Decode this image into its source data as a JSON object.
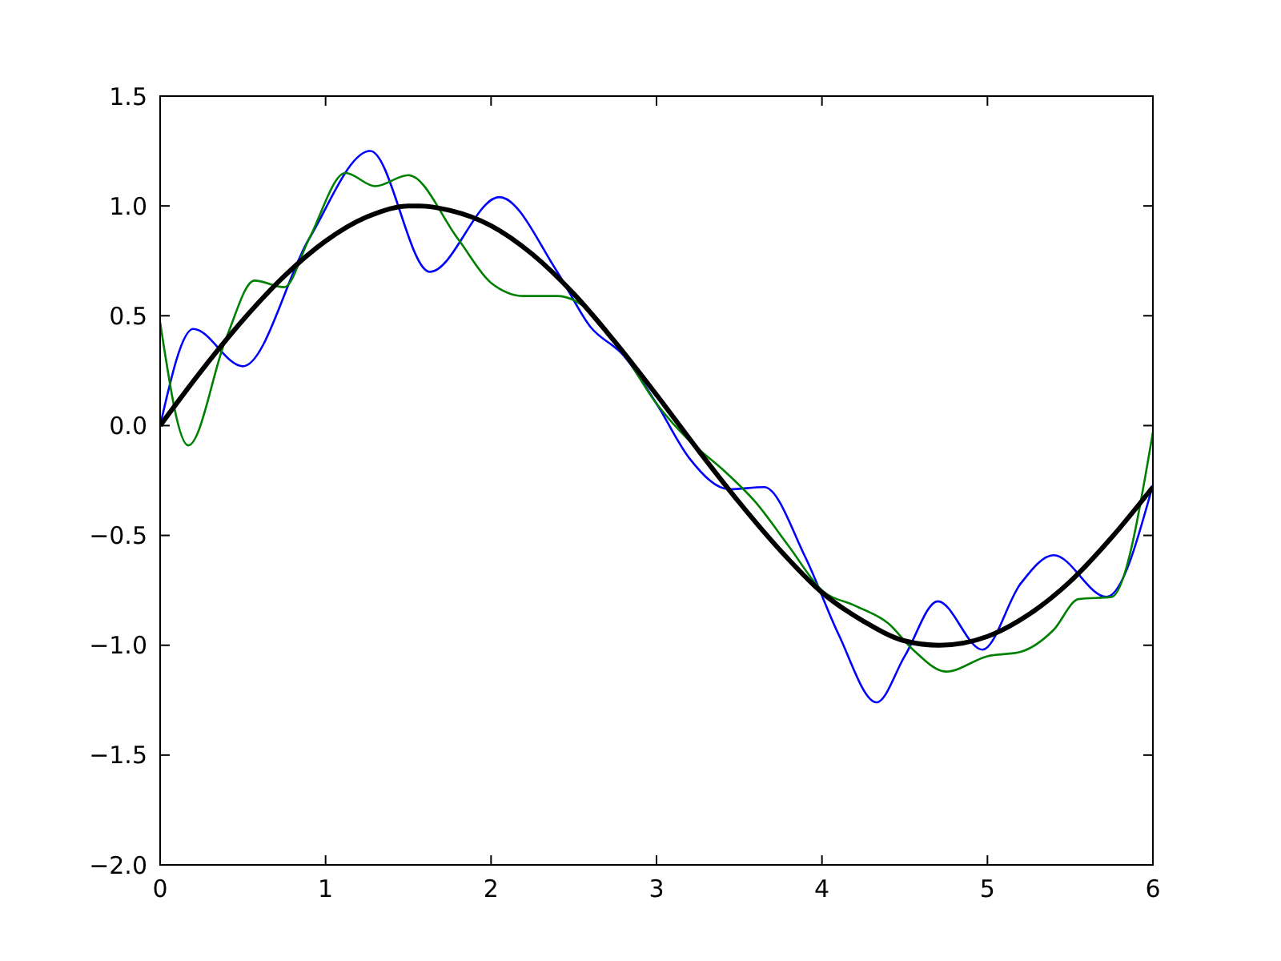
{
  "chart_data": {
    "type": "line",
    "xlim": [
      0,
      6
    ],
    "ylim": [
      -2.0,
      1.5
    ],
    "xticks": [
      0,
      1,
      2,
      3,
      4,
      5,
      6
    ],
    "yticks": [
      {
        "value": -2,
        "label": "−2.0"
      },
      {
        "value": -1.5,
        "label": "−1.5"
      },
      {
        "value": -1,
        "label": "−1.0"
      },
      {
        "value": -0.5,
        "label": "−0.5"
      },
      {
        "value": 0,
        "label": "0.0"
      },
      {
        "value": 0.5,
        "label": "0.5"
      },
      {
        "value": 1,
        "label": "1.0"
      },
      {
        "value": 1.5,
        "label": "1.5"
      }
    ],
    "marker": "none",
    "line_style": "solid",
    "series": [
      {
        "color": "#0000ff",
        "x": [
          0,
          0.2,
          0.5,
          0.9,
          1.27,
          1.63,
          2.05,
          2.4,
          2.6,
          2.8,
          3.0,
          3.2,
          3.44,
          3.65,
          3.9,
          4.1,
          4.33,
          4.5,
          4.7,
          4.97,
          5.2,
          5.4,
          5.72,
          6.0
        ],
        "values": [
          0.0,
          0.44,
          0.27,
          0.85,
          1.25,
          0.7,
          1.04,
          0.7,
          0.45,
          0.32,
          0.1,
          -0.15,
          -0.29,
          -0.28,
          -0.6,
          -0.95,
          -1.26,
          -1.05,
          -0.8,
          -1.02,
          -0.72,
          -0.59,
          -0.78,
          -0.27
        ]
      },
      {
        "color": "#008000",
        "x": [
          0,
          0.17,
          0.4,
          0.57,
          0.75,
          0.9,
          1.12,
          1.3,
          1.5,
          1.8,
          2.0,
          2.2,
          2.4,
          2.6,
          2.8,
          3.0,
          3.2,
          3.4,
          3.6,
          3.8,
          4.0,
          4.2,
          4.4,
          4.55,
          4.75,
          5.0,
          5.2,
          5.4,
          5.55,
          5.75,
          6.0
        ],
        "values": [
          0.47,
          -0.09,
          0.4,
          0.66,
          0.63,
          0.85,
          1.15,
          1.09,
          1.14,
          0.85,
          0.65,
          0.59,
          0.59,
          0.52,
          0.33,
          0.1,
          -0.07,
          -0.2,
          -0.35,
          -0.55,
          -0.75,
          -0.82,
          -0.9,
          -1.02,
          -1.12,
          -1.05,
          -1.03,
          -0.93,
          -0.79,
          -0.78,
          -0.03
        ]
      },
      {
        "color": "#000000",
        "x": [
          0,
          0.25,
          0.5,
          0.75,
          1.0,
          1.25,
          1.5,
          1.57,
          1.75,
          2.0,
          2.25,
          2.5,
          2.75,
          3.0,
          3.25,
          3.5,
          3.75,
          4.0,
          4.25,
          4.5,
          4.71,
          5.0,
          5.25,
          5.5,
          5.75,
          6.0
        ],
        "values": [
          0,
          0.25,
          0.48,
          0.68,
          0.84,
          0.95,
          1.0,
          1.0,
          0.98,
          0.91,
          0.78,
          0.6,
          0.38,
          0.14,
          -0.11,
          -0.35,
          -0.57,
          -0.76,
          -0.89,
          -0.98,
          -1.0,
          -0.96,
          -0.86,
          -0.71,
          -0.51,
          -0.28
        ]
      }
    ]
  }
}
